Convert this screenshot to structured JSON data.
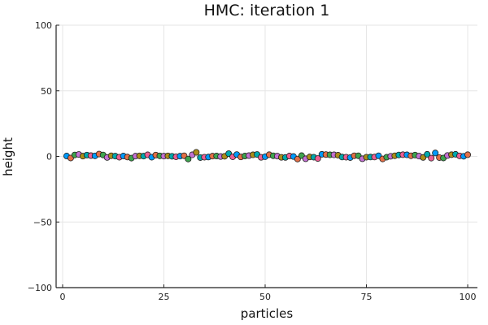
{
  "chart_data": {
    "type": "scatter",
    "title": "HMC: iteration 1",
    "xlabel": "particles",
    "ylabel": "height",
    "xlim": [
      0,
      100
    ],
    "ylim": [
      -100,
      100
    ],
    "xticks": [
      0,
      25,
      50,
      75,
      100
    ],
    "xtick_labels": [
      "0",
      "25",
      "50",
      "75",
      "100"
    ],
    "yticks": [
      -100,
      -50,
      0,
      50,
      100
    ],
    "ytick_labels": [
      "−100",
      "−50",
      "0",
      "50",
      "100"
    ],
    "grid": true,
    "legend": "none",
    "colors": [
      "#009AFA",
      "#E36F47",
      "#3EA44E",
      "#C371D2",
      "#AC8D18",
      "#00A9AD",
      "#ED5E93"
    ],
    "x": [
      1,
      2,
      3,
      4,
      5,
      6,
      7,
      8,
      9,
      10,
      11,
      12,
      13,
      14,
      15,
      16,
      17,
      18,
      19,
      20,
      21,
      22,
      23,
      24,
      25,
      26,
      27,
      28,
      29,
      30,
      31,
      32,
      33,
      34,
      35,
      36,
      37,
      38,
      39,
      40,
      41,
      42,
      43,
      44,
      45,
      46,
      47,
      48,
      49,
      50,
      51,
      52,
      53,
      54,
      55,
      56,
      57,
      58,
      59,
      60,
      61,
      62,
      63,
      64,
      65,
      66,
      67,
      68,
      69,
      70,
      71,
      72,
      73,
      74,
      75,
      76,
      77,
      78,
      79,
      80,
      81,
      82,
      83,
      84,
      85,
      86,
      87,
      88,
      89,
      90,
      91,
      92,
      93,
      94,
      95,
      96,
      97,
      98,
      99,
      100
    ],
    "y": [
      0.3,
      -1.2,
      1.1,
      1.5,
      0.2,
      1.0,
      0.6,
      0.4,
      1.8,
      1.1,
      -0.8,
      0.5,
      0.2,
      -0.6,
      0.3,
      -0.5,
      -1.3,
      0.2,
      0.4,
      0.2,
      1.2,
      -0.6,
      1.0,
      0.4,
      0.2,
      0.4,
      0.1,
      -0.3,
      0.2,
      0.5,
      -2.0,
      1.2,
      3.1,
      -0.9,
      -0.6,
      -0.5,
      0.2,
      0.3,
      -0.1,
      0.1,
      2.1,
      -0.3,
      1.4,
      -0.4,
      0.3,
      0.6,
      1.2,
      1.5,
      -0.7,
      -0.2,
      1.3,
      0.5,
      0.2,
      -0.7,
      -0.8,
      0.3,
      -0.1,
      -2.0,
      0.6,
      -1.8,
      -0.4,
      -0.6,
      -1.6,
      1.6,
      1.4,
      1.2,
      1.2,
      0.9,
      -0.5,
      -0.6,
      -0.9,
      0.5,
      0.5,
      -1.8,
      -0.6,
      -0.5,
      -0.5,
      0.5,
      -1.9,
      -0.6,
      0.1,
      0.5,
      1.1,
      1.3,
      1.2,
      0.5,
      1.0,
      0.2,
      -0.8,
      1.6,
      -1.3,
      2.6,
      -0.9,
      -1.2,
      0.7,
      1.3,
      1.6,
      0.4,
      0.1,
      1.3
    ]
  }
}
